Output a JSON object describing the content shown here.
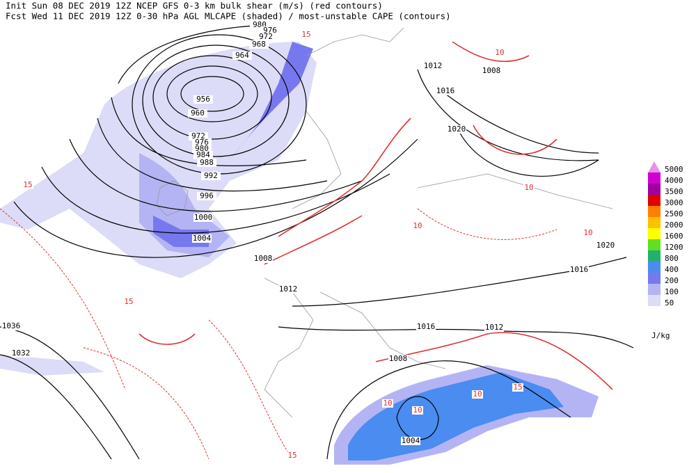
{
  "header": {
    "line1": "Init  Sun 08 DEC 2019 12Z  NCEP GFS 0-3 km bulk shear (m/s) (red contours)",
    "line2": "Fcst Wed 11 DEC 2019 12Z  0-30 hPa AGL MLCAPE (shaded) / most-unstable CAPE (contours)"
  },
  "legend": {
    "levels": [
      {
        "label": "5000",
        "color": "#e890ec"
      },
      {
        "label": "4000",
        "color": "#d000d0"
      },
      {
        "label": "3500",
        "color": "#a000a0"
      },
      {
        "label": "3000",
        "color": "#e00000"
      },
      {
        "label": "2500",
        "color": "#ff8000"
      },
      {
        "label": "2000",
        "color": "#ffc000"
      },
      {
        "label": "1600",
        "color": "#ffff00"
      },
      {
        "label": "1200",
        "color": "#60e020"
      },
      {
        "label": "800",
        "color": "#20b070"
      },
      {
        "label": "400",
        "color": "#4a8cf0"
      },
      {
        "label": "200",
        "color": "#7878ee"
      },
      {
        "label": "100",
        "color": "#b4b4f4"
      },
      {
        "label": "50",
        "color": "#dcdcf8"
      }
    ],
    "unit": "J/kg"
  },
  "isobar_labels": [
    "980",
    "976",
    "972",
    "968",
    "964",
    "956",
    "960",
    "972",
    "976",
    "980",
    "984",
    "988",
    "992",
    "996",
    "1000",
    "1004",
    "1008",
    "1012",
    "1016",
    "1012",
    "1008",
    "1004",
    "1012",
    "1016",
    "1020",
    "1008",
    "1020",
    "1016",
    "1036",
    "1032"
  ],
  "shear_labels": [
    "15",
    "10",
    "10",
    "10",
    "10",
    "10",
    "15",
    "15",
    "15",
    "10",
    "10",
    "15"
  ]
}
